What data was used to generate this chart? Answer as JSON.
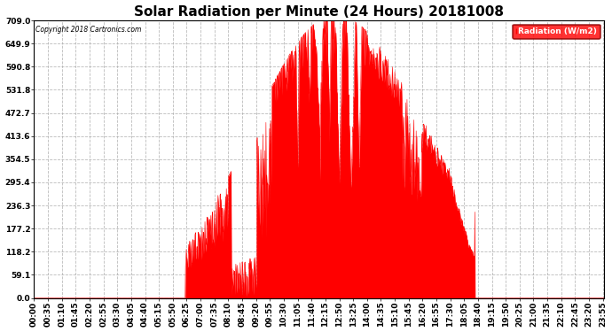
{
  "title": "Solar Radiation per Minute (24 Hours) 20181008",
  "copyright_text": "Copyright 2018 Cartronics.com",
  "legend_label": "Radiation (W/m2)",
  "yticks": [
    0.0,
    59.1,
    118.2,
    177.2,
    236.3,
    295.4,
    354.5,
    413.6,
    472.7,
    531.8,
    590.8,
    649.9,
    709.0
  ],
  "ymax": 709.0,
  "ymin": 0.0,
  "bar_color": "#FF0000",
  "background_color": "#FFFFFF",
  "grid_color": "#AAAAAA",
  "title_fontsize": 11,
  "axis_fontsize": 6.5,
  "tick_interval_minutes": 35,
  "total_minutes": 1440,
  "figwidth": 6.9,
  "figheight": 3.75,
  "dpi": 100
}
